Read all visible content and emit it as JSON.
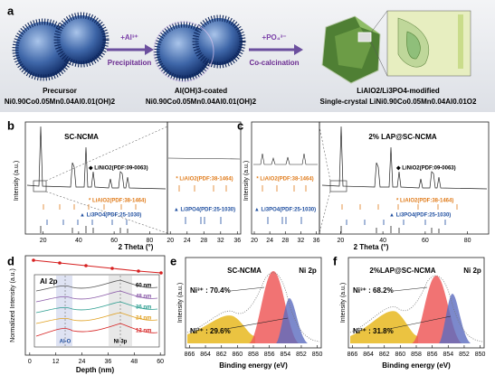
{
  "panel_a": {
    "label": "a",
    "step1": {
      "reagent": "+Al³⁺",
      "process": "Precipitation"
    },
    "step2": {
      "reagent": "+PO₄³⁻",
      "process": "Co-calcination"
    },
    "precursor": {
      "name": "Precursor",
      "formula": "Ni0.90Co0.05Mn0.04Al0.01(OH)2"
    },
    "coated": {
      "name": "Al(OH)3-coated",
      "formula": "Ni0.90Co0.05Mn0.04Al0.01(OH)2"
    },
    "product": {
      "name": "LiAlO2/Li3PO4-modified",
      "formula": "Single-crystal LiNi0.90Co0.05Mn0.04Al0.01O2"
    }
  },
  "panel_b": {
    "label": "b",
    "title": "SC-NCMA",
    "y_label": "Intensity (a.u.)",
    "x_label": "2 Theta (°)",
    "main": {
      "xlim": [
        10,
        90
      ],
      "xticks": [
        20,
        40,
        60,
        80
      ]
    },
    "zoom": {
      "xlim": [
        19.3,
        36.8
      ],
      "xticks": [
        20,
        24,
        28,
        32,
        36
      ]
    },
    "legend": [
      "◆ LiNiO2(PDF:09-0063)",
      "* LiAlO2(PDF:38-1464)",
      "▲ Li3PO4(PDF:25-1030)"
    ],
    "zoom_legend": [
      "* LiAlO2(PDF:38-1464)",
      "▲ Li3PO4(PDF:25-1030)"
    ]
  },
  "panel_c": {
    "label": "c",
    "title": "2% LAP@SC-NCMA",
    "y_label": "Intensity (a.u.)",
    "x_label": "2 Theta (°)",
    "main": {
      "xlim": [
        10,
        90
      ],
      "xticks": [
        20,
        40,
        60,
        80
      ]
    },
    "zoom": {
      "xlim": [
        19.3,
        36.8
      ],
      "xticks": [
        20,
        24,
        28,
        32,
        36
      ]
    },
    "legend": [
      "◆ LiNiO2(PDF:09-0063)",
      "* LiAlO2(PDF:38-1464)",
      "▲ Li3PO4(PDF:25-1030)"
    ],
    "zoom_legend": [
      "* LiAlO2(PDF:38-1464)",
      "▲ Li3PO4(PDF:25-1030)"
    ]
  },
  "panel_d": {
    "label": "d",
    "y_label": "Normalized Intensity (a.u.)",
    "x_label": "Depth (nm)",
    "xlim": [
      -2,
      62
    ],
    "xticks": [
      0,
      12,
      24,
      36,
      48,
      60
    ],
    "inset": {
      "title": "Al 2p",
      "peak": "Ni 3p",
      "bond": "Al-O",
      "depths": [
        "60 nm",
        "48 nm",
        "36 nm",
        "24 nm",
        "12 nm"
      ]
    }
  },
  "panel_e": {
    "label": "e",
    "title": "SC-NCMA",
    "core": "Ni 2p",
    "ni3": "Ni³⁺ : 70.4%",
    "ni2": "Ni²⁺ : 29.6%",
    "y_label": "Intensity (a.u.)",
    "x_label": "Binding energy (eV)",
    "xlim": [
      866.5,
      849.5
    ],
    "xticks": [
      866,
      864,
      862,
      860,
      858,
      856,
      854,
      852,
      850
    ]
  },
  "panel_f": {
    "label": "f",
    "title": "2%LAP@SC-NCMA",
    "core": "Ni 2p",
    "ni3": "Ni³⁺ : 68.2%",
    "ni2": "Ni²⁺ : 31.8%",
    "y_label": "Intensity (a.u.)",
    "x_label": "Binding energy (eV)",
    "xlim": [
      866.5,
      849.5
    ],
    "xticks": [
      866,
      864,
      862,
      860,
      858,
      856,
      854,
      852,
      850
    ]
  }
}
